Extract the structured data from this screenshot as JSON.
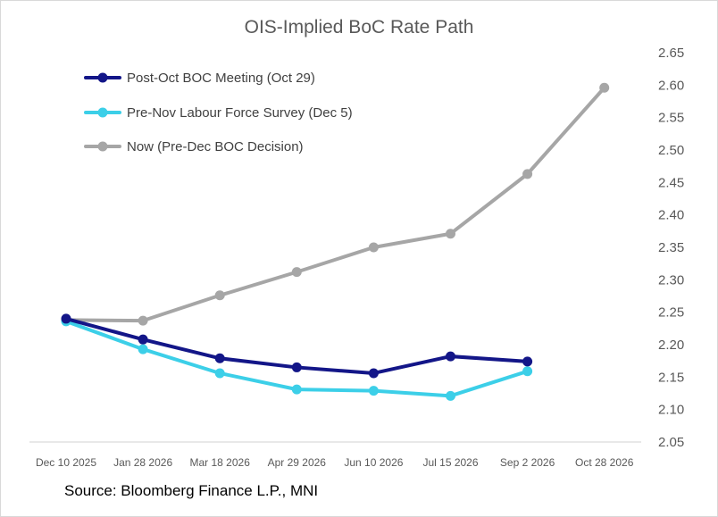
{
  "chart_data": {
    "type": "line",
    "title": "OIS-Implied BoC Rate Path",
    "source": "Source: Bloomberg Finance L.P., MNI",
    "categories": [
      "Dec 10 2025",
      "Jan 28 2026",
      "Mar 18 2026",
      "Apr 29 2026",
      "Jun 10 2026",
      "Jul 15 2026",
      "Sep 2 2026",
      "Oct 28 2026"
    ],
    "y_ticks": [
      "2.05",
      "2.10",
      "2.15",
      "2.20",
      "2.25",
      "2.30",
      "2.35",
      "2.40",
      "2.45",
      "2.50",
      "2.55",
      "2.60",
      "2.65"
    ],
    "ylim": [
      2.05,
      2.65
    ],
    "y_axis_side": "right",
    "legend_position": "top-left",
    "series": [
      {
        "name": "Post-Oct BOC Meeting (Oct 29)",
        "color": "#131688",
        "values": [
          2.24,
          2.208,
          2.179,
          2.165,
          2.156,
          2.182,
          2.174,
          null
        ]
      },
      {
        "name": "Pre-Nov Labour Force Survey (Dec 5)",
        "color": "#3ccfe8",
        "values": [
          2.236,
          2.193,
          2.156,
          2.131,
          2.129,
          2.121,
          2.159,
          null
        ]
      },
      {
        "name": "Now (Pre-Dec BOC Decision)",
        "color": "#a6a6a6",
        "values": [
          2.238,
          2.237,
          2.276,
          2.312,
          2.35,
          2.371,
          2.463,
          2.596
        ]
      }
    ]
  }
}
